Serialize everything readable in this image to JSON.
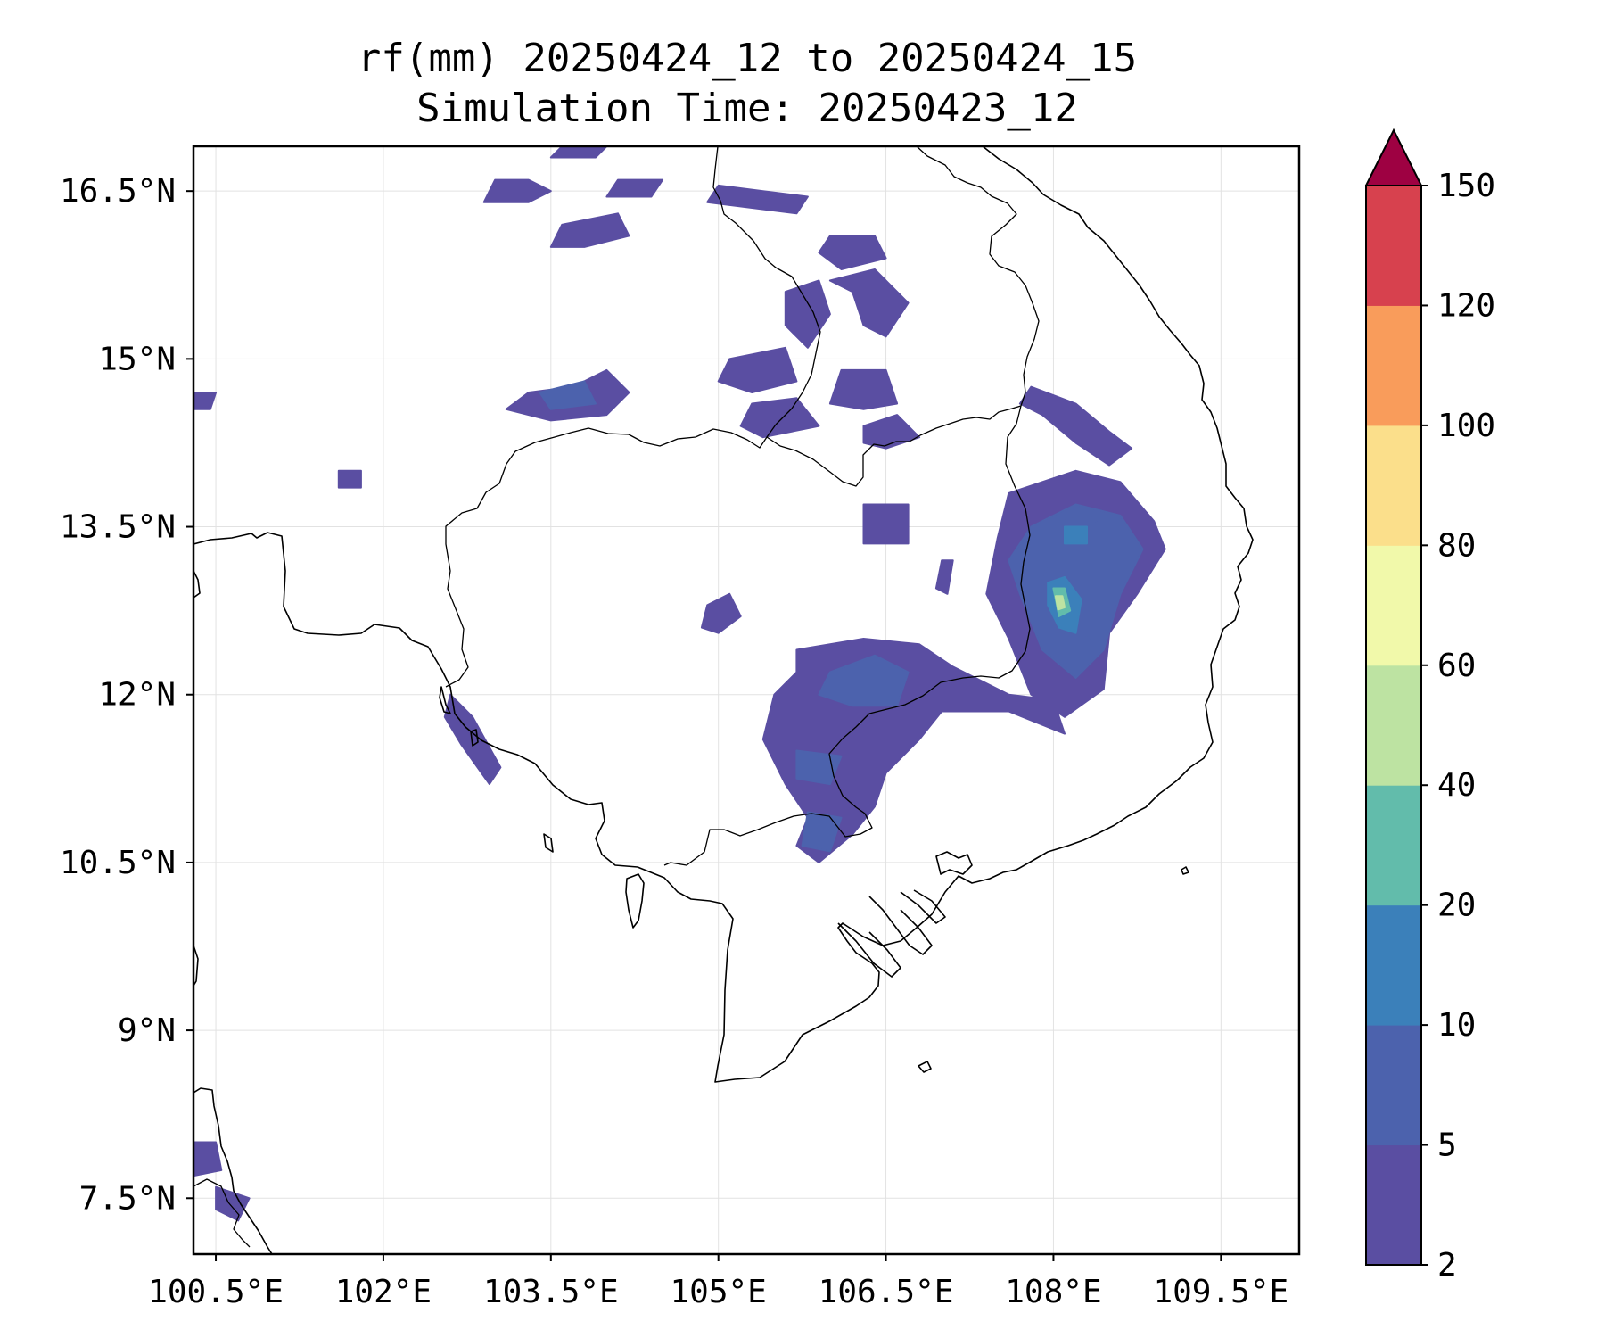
{
  "title": {
    "line1": "rf(mm) 20250424_12 to 20250424_15",
    "line2": "Simulation Time: 20250423_12"
  },
  "map": {
    "lon_range": [
      100.3,
      110.2
    ],
    "lat_range": [
      7.0,
      16.9
    ],
    "x_ticks": [
      {
        "value": 100.5,
        "label": "100.5°E"
      },
      {
        "value": 102.0,
        "label": "102°E"
      },
      {
        "value": 103.5,
        "label": "103.5°E"
      },
      {
        "value": 105.0,
        "label": "105°E"
      },
      {
        "value": 106.5,
        "label": "106.5°E"
      },
      {
        "value": 108.0,
        "label": "108°E"
      },
      {
        "value": 109.5,
        "label": "109.5°E"
      }
    ],
    "y_ticks": [
      {
        "value": 16.5,
        "label": "16.5°N"
      },
      {
        "value": 15.0,
        "label": "15°N"
      },
      {
        "value": 13.5,
        "label": "13.5°N"
      },
      {
        "value": 12.0,
        "label": "12°N"
      },
      {
        "value": 10.5,
        "label": "10.5°N"
      },
      {
        "value": 9.0,
        "label": "9°N"
      },
      {
        "value": 7.5,
        "label": "7.5°N"
      }
    ]
  },
  "colorbar": {
    "levels": [
      "2",
      "5",
      "10",
      "20",
      "40",
      "60",
      "80",
      "100",
      "120",
      "150"
    ],
    "colors": [
      "#5a4ea2",
      "#4c62ad",
      "#3b80ba",
      "#62bcab",
      "#bde3a2",
      "#f1f9aa",
      "#fbdf8b",
      "#f99c5b",
      "#d7414e"
    ],
    "extend_color": "#9e0142"
  },
  "rain_areas": [
    {
      "id": "r01",
      "level": 0,
      "pts": [
        [
          103.6,
          16.9
        ],
        [
          104.0,
          16.9
        ],
        [
          103.9,
          16.8
        ],
        [
          103.5,
          16.8
        ]
      ]
    },
    {
      "id": "r02",
      "level": 0,
      "pts": [
        [
          103.0,
          16.6
        ],
        [
          103.3,
          16.6
        ],
        [
          103.5,
          16.5
        ],
        [
          103.3,
          16.4
        ],
        [
          102.9,
          16.4
        ]
      ]
    },
    {
      "id": "r03",
      "level": 0,
      "pts": [
        [
          103.6,
          16.2
        ],
        [
          104.1,
          16.3
        ],
        [
          104.2,
          16.1
        ],
        [
          103.8,
          16.0
        ],
        [
          103.5,
          16.0
        ]
      ]
    },
    {
      "id": "r04",
      "level": 0,
      "pts": [
        [
          104.1,
          16.6
        ],
        [
          104.5,
          16.6
        ],
        [
          104.4,
          16.45
        ],
        [
          104.0,
          16.45
        ]
      ]
    },
    {
      "id": "r05",
      "level": 0,
      "pts": [
        [
          105.0,
          16.55
        ],
        [
          105.4,
          16.5
        ],
        [
          105.8,
          16.45
        ],
        [
          105.7,
          16.3
        ],
        [
          105.3,
          16.35
        ],
        [
          104.9,
          16.4
        ]
      ]
    },
    {
      "id": "r06",
      "level": 0,
      "pts": [
        [
          106.0,
          16.1
        ],
        [
          106.4,
          16.1
        ],
        [
          106.5,
          15.9
        ],
        [
          106.1,
          15.8
        ],
        [
          105.9,
          15.95
        ]
      ]
    },
    {
      "id": "r07",
      "level": 0,
      "pts": [
        [
          106.0,
          15.7
        ],
        [
          106.4,
          15.8
        ],
        [
          106.7,
          15.5
        ],
        [
          106.5,
          15.2
        ],
        [
          106.3,
          15.3
        ],
        [
          106.2,
          15.6
        ]
      ]
    },
    {
      "id": "r08",
      "level": 0,
      "pts": [
        [
          105.6,
          15.6
        ],
        [
          105.9,
          15.7
        ],
        [
          106.0,
          15.4
        ],
        [
          105.8,
          15.1
        ],
        [
          105.6,
          15.3
        ]
      ]
    },
    {
      "id": "r09",
      "level": 0,
      "pts": [
        [
          105.1,
          15.0
        ],
        [
          105.6,
          15.1
        ],
        [
          105.7,
          14.8
        ],
        [
          105.3,
          14.7
        ],
        [
          105.0,
          14.8
        ]
      ]
    },
    {
      "id": "r10",
      "level": 0,
      "pts": [
        [
          106.1,
          14.9
        ],
        [
          106.5,
          14.9
        ],
        [
          106.6,
          14.6
        ],
        [
          106.3,
          14.55
        ],
        [
          106.0,
          14.6
        ]
      ]
    },
    {
      "id": "r11",
      "level": 0,
      "pts": [
        [
          105.3,
          14.6
        ],
        [
          105.7,
          14.65
        ],
        [
          105.9,
          14.4
        ],
        [
          105.4,
          14.3
        ],
        [
          105.2,
          14.4
        ]
      ]
    },
    {
      "id": "r12",
      "level": 0,
      "pts": [
        [
          106.3,
          14.4
        ],
        [
          106.6,
          14.5
        ],
        [
          106.8,
          14.3
        ],
        [
          106.5,
          14.2
        ],
        [
          106.3,
          14.25
        ]
      ]
    },
    {
      "id": "r13",
      "level": 0,
      "pts": [
        [
          103.3,
          14.7
        ],
        [
          103.7,
          14.75
        ],
        [
          104.0,
          14.9
        ],
        [
          104.2,
          14.7
        ],
        [
          104.0,
          14.5
        ],
        [
          103.5,
          14.45
        ],
        [
          103.1,
          14.55
        ]
      ]
    },
    {
      "id": "r14",
      "level": 0,
      "pts": [
        [
          101.6,
          14.0
        ],
        [
          101.8,
          14.0
        ],
        [
          101.8,
          13.85
        ],
        [
          101.6,
          13.85
        ]
      ]
    },
    {
      "id": "r15",
      "level": 0,
      "pts": [
        [
          100.3,
          14.7
        ],
        [
          100.5,
          14.7
        ],
        [
          100.45,
          14.55
        ],
        [
          100.3,
          14.55
        ]
      ]
    },
    {
      "id": "r16",
      "level": 0,
      "pts": [
        [
          106.3,
          13.7
        ],
        [
          106.7,
          13.7
        ],
        [
          106.7,
          13.35
        ],
        [
          106.3,
          13.35
        ]
      ]
    },
    {
      "id": "r17",
      "level": 0,
      "pts": [
        [
          107.0,
          13.2
        ],
        [
          107.1,
          13.2
        ],
        [
          107.05,
          12.9
        ],
        [
          106.95,
          12.95
        ]
      ]
    },
    {
      "id": "r18",
      "level": 0,
      "pts": [
        [
          104.9,
          12.8
        ],
        [
          105.1,
          12.9
        ],
        [
          105.2,
          12.7
        ],
        [
          105.0,
          12.55
        ],
        [
          104.85,
          12.6
        ]
      ]
    },
    {
      "id": "r19",
      "level": 0,
      "pts": [
        [
          107.8,
          14.75
        ],
        [
          108.2,
          14.6
        ],
        [
          108.5,
          14.35
        ],
        [
          108.7,
          14.2
        ],
        [
          108.5,
          14.05
        ],
        [
          108.2,
          14.25
        ],
        [
          107.9,
          14.5
        ],
        [
          107.7,
          14.6
        ]
      ]
    },
    {
      "id": "r20",
      "level": 0,
      "pts": [
        [
          107.6,
          13.8
        ],
        [
          108.2,
          14.0
        ],
        [
          108.6,
          13.9
        ],
        [
          108.9,
          13.55
        ],
        [
          109.0,
          13.3
        ],
        [
          108.75,
          12.9
        ],
        [
          108.5,
          12.55
        ],
        [
          108.45,
          12.05
        ],
        [
          108.1,
          11.8
        ],
        [
          107.8,
          12.0
        ],
        [
          107.6,
          12.5
        ],
        [
          107.4,
          12.9
        ],
        [
          107.5,
          13.4
        ]
      ]
    },
    {
      "id": "r21",
      "level": 0,
      "pts": [
        [
          105.7,
          12.4
        ],
        [
          106.3,
          12.5
        ],
        [
          106.8,
          12.45
        ],
        [
          107.1,
          12.25
        ],
        [
          107.6,
          12.0
        ],
        [
          108.0,
          11.95
        ],
        [
          108.1,
          11.65
        ],
        [
          107.6,
          11.85
        ],
        [
          107.0,
          11.85
        ],
        [
          106.8,
          11.6
        ],
        [
          106.5,
          11.3
        ],
        [
          106.4,
          11.0
        ],
        [
          106.2,
          10.75
        ],
        [
          105.9,
          10.5
        ],
        [
          105.7,
          10.65
        ],
        [
          105.8,
          10.9
        ],
        [
          105.6,
          11.2
        ],
        [
          105.4,
          11.6
        ],
        [
          105.5,
          12.0
        ],
        [
          105.7,
          12.2
        ]
      ]
    },
    {
      "id": "r22",
      "level": 0,
      "pts": [
        [
          102.6,
          12.0
        ],
        [
          102.8,
          11.8
        ],
        [
          103.05,
          11.35
        ],
        [
          102.95,
          11.2
        ],
        [
          102.7,
          11.55
        ],
        [
          102.55,
          11.8
        ]
      ]
    },
    {
      "id": "r23",
      "level": 0,
      "pts": [
        [
          100.3,
          8.0
        ],
        [
          100.5,
          8.0
        ],
        [
          100.55,
          7.75
        ],
        [
          100.3,
          7.7
        ]
      ]
    },
    {
      "id": "r24",
      "level": 0,
      "pts": [
        [
          100.5,
          7.6
        ],
        [
          100.8,
          7.5
        ],
        [
          100.7,
          7.3
        ],
        [
          100.5,
          7.4
        ]
      ]
    },
    {
      "id": "r25",
      "level": 1,
      "pts": [
        [
          107.8,
          13.5
        ],
        [
          108.2,
          13.7
        ],
        [
          108.6,
          13.6
        ],
        [
          108.8,
          13.3
        ],
        [
          108.6,
          12.9
        ],
        [
          108.45,
          12.4
        ],
        [
          108.2,
          12.15
        ],
        [
          107.9,
          12.4
        ],
        [
          107.7,
          12.9
        ],
        [
          107.6,
          13.2
        ]
      ]
    },
    {
      "id": "r26",
      "level": 1,
      "pts": [
        [
          106.0,
          12.2
        ],
        [
          106.4,
          12.35
        ],
        [
          106.7,
          12.2
        ],
        [
          106.6,
          11.9
        ],
        [
          106.2,
          11.9
        ],
        [
          105.9,
          12.0
        ]
      ]
    },
    {
      "id": "r27",
      "level": 1,
      "pts": [
        [
          105.7,
          11.5
        ],
        [
          106.1,
          11.45
        ],
        [
          106.0,
          11.2
        ],
        [
          105.7,
          11.25
        ]
      ]
    },
    {
      "id": "r28",
      "level": 1,
      "pts": [
        [
          105.8,
          10.95
        ],
        [
          106.1,
          10.9
        ],
        [
          106.0,
          10.6
        ],
        [
          105.75,
          10.65
        ]
      ]
    },
    {
      "id": "r29",
      "level": 1,
      "pts": [
        [
          103.4,
          14.7
        ],
        [
          103.8,
          14.8
        ],
        [
          103.9,
          14.6
        ],
        [
          103.5,
          14.55
        ]
      ]
    },
    {
      "id": "r30",
      "level": 1,
      "pts": [
        [
          108.05,
          13.55
        ],
        [
          108.35,
          13.6
        ],
        [
          108.5,
          13.35
        ],
        [
          108.4,
          13.05
        ],
        [
          108.55,
          12.8
        ],
        [
          108.35,
          12.5
        ],
        [
          108.1,
          12.55
        ],
        [
          107.9,
          12.9
        ],
        [
          107.95,
          13.25
        ]
      ]
    },
    {
      "id": "r31",
      "level": 2,
      "pts": [
        [
          108.1,
          13.5
        ],
        [
          108.3,
          13.5
        ],
        [
          108.3,
          13.35
        ],
        [
          108.1,
          13.35
        ]
      ]
    },
    {
      "id": "r32",
      "level": 2,
      "pts": [
        [
          107.95,
          13.0
        ],
        [
          108.1,
          13.05
        ],
        [
          108.25,
          12.85
        ],
        [
          108.2,
          12.55
        ],
        [
          108.05,
          12.6
        ],
        [
          107.95,
          12.8
        ]
      ]
    },
    {
      "id": "r33",
      "level": 3,
      "pts": [
        [
          108.0,
          12.95
        ],
        [
          108.1,
          12.95
        ],
        [
          108.15,
          12.75
        ],
        [
          108.05,
          12.7
        ]
      ]
    },
    {
      "id": "r34",
      "level": 4,
      "pts": [
        [
          108.02,
          12.88
        ],
        [
          108.08,
          12.88
        ],
        [
          108.1,
          12.78
        ],
        [
          108.04,
          12.76
        ]
      ]
    }
  ]
}
